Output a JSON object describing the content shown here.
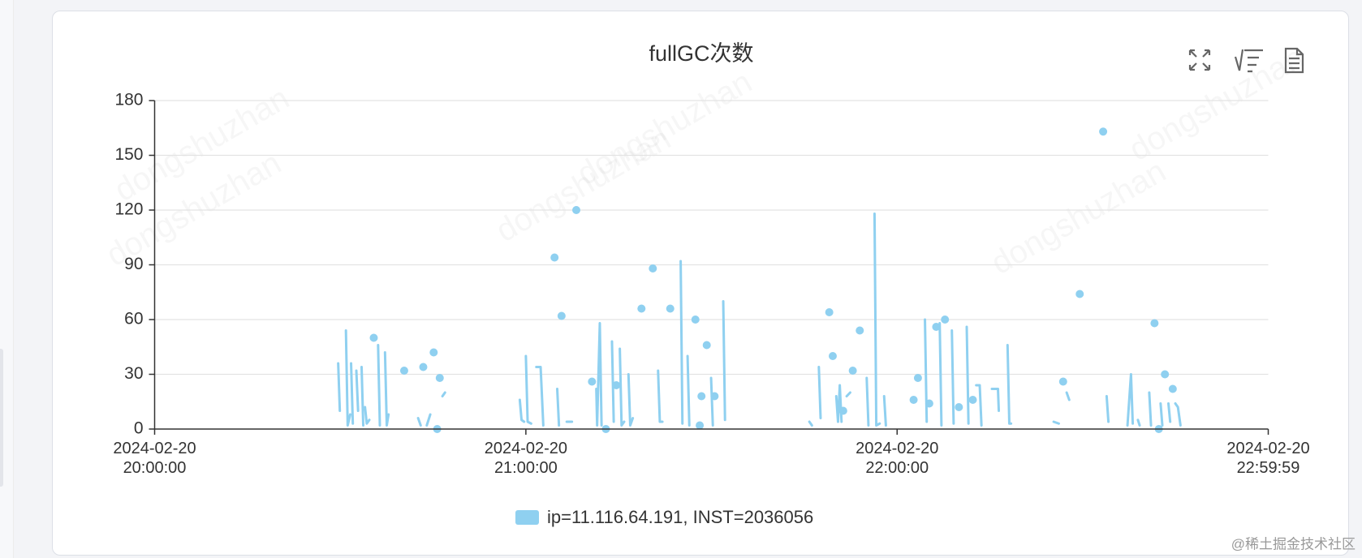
{
  "chart_data": {
    "type": "line",
    "title": "fullGC次数",
    "x": [
      "2024-02-20 20:29:40",
      "2024-02-20 20:29:56",
      null,
      "2024-02-20 20:30:55",
      "2024-02-20 20:31:12",
      "2024-02-20 20:31:37",
      null,
      "2024-02-20 20:31:45",
      "2024-02-20 20:32:02",
      null,
      "2024-02-20 20:32:36",
      "2024-02-20 20:32:53",
      null,
      "2024-02-20 20:33:27",
      "2024-02-20 20:33:43",
      null,
      "2024-02-20 20:34:00",
      "2024-02-20 20:34:17",
      "2024-02-20 20:34:42",
      null,
      "2024-02-20 20:35:25",
      null,
      "2024-02-20 20:36:07",
      "2024-02-20 20:36:24",
      null,
      "2024-02-20 20:37:14",
      "2024-02-20 20:37:31",
      "2024-02-20 20:37:48",
      null,
      "2024-02-20 20:40:20",
      null,
      "2024-02-20 20:42:35",
      "2024-02-20 20:43:00",
      null,
      "2024-02-20 20:43:25",
      null,
      "2024-02-20 20:43:59",
      "2024-02-20 20:44:33",
      null,
      "2024-02-20 20:45:06",
      null,
      "2024-02-20 20:45:40",
      null,
      "2024-02-20 20:46:05",
      null,
      "2024-02-20 20:46:31",
      "2024-02-20 20:46:56",
      null,
      "2024-02-20 20:59:01",
      "2024-02-20 20:59:18",
      "2024-02-20 20:59:43",
      null,
      "2024-02-20 21:00:00",
      "2024-02-20 21:00:17",
      "2024-02-20 21:00:51",
      null,
      "2024-02-20 21:01:41",
      "2024-02-20 21:02:23",
      "2024-02-20 21:02:49",
      null,
      "2024-02-20 21:04:38",
      null,
      "2024-02-20 21:05:04",
      "2024-02-20 21:05:21",
      null,
      "2024-02-20 21:05:46",
      null,
      "2024-02-20 21:06:36",
      "2024-02-20 21:07:27",
      null,
      "2024-02-20 21:08:09",
      null,
      "2024-02-20 21:10:41",
      null,
      "2024-02-20 21:11:23",
      "2024-02-20 21:11:31",
      "2024-02-20 21:11:57",
      "2024-02-20 21:12:14",
      null,
      "2024-02-20 21:12:56",
      null,
      "2024-02-20 21:13:55",
      "2024-02-20 21:14:12",
      null,
      "2024-02-20 21:14:37",
      null,
      "2024-02-20 21:15:11",
      "2024-02-20 21:15:28",
      "2024-02-20 21:15:53",
      null,
      "2024-02-20 21:16:35",
      "2024-02-20 21:16:52",
      "2024-02-20 21:17:17",
      null,
      "2024-02-20 21:18:41",
      null,
      "2024-02-20 21:20:31",
      null,
      "2024-02-20 21:21:22",
      "2024-02-20 21:21:39",
      "2024-02-20 21:22:04",
      null,
      "2024-02-20 21:23:20",
      null,
      "2024-02-20 21:25:01",
      "2024-02-20 21:25:18",
      null,
      "2024-02-20 21:26:08",
      "2024-02-20 21:26:25",
      null,
      "2024-02-20 21:27:24",
      null,
      "2024-02-20 21:28:06",
      null,
      "2024-02-20 21:28:23",
      null,
      "2024-02-20 21:29:14",
      null,
      "2024-02-20 21:29:56",
      "2024-02-20 21:30:13",
      null,
      "2024-02-20 21:30:30",
      null,
      "2024-02-20 21:31:54",
      "2024-02-20 21:32:11",
      null,
      "2024-02-20 21:45:49",
      "2024-02-20 21:46:14",
      null,
      "2024-02-20 21:47:21",
      "2024-02-20 21:47:38",
      null,
      "2024-02-20 21:49:02",
      null,
      "2024-02-20 21:49:36",
      null,
      "2024-02-20 21:50:10",
      "2024-02-20 21:50:27",
      "2024-02-20 21:50:44",
      "2024-02-20 21:51:01",
      null,
      "2024-02-20 21:51:17",
      null,
      "2024-02-20 21:51:51",
      "2024-02-20 21:52:25",
      null,
      "2024-02-20 21:52:50",
      null,
      "2024-02-20 21:53:58",
      null,
      "2024-02-20 21:55:05",
      "2024-02-20 21:55:22",
      null,
      "2024-02-20 21:56:21",
      "2024-02-20 21:56:38",
      "2024-02-20 21:57:11",
      null,
      "2024-02-20 21:57:54",
      "2024-02-20 21:58:11",
      null,
      "2024-02-20 22:02:40",
      null,
      "2024-02-20 22:03:22",
      null,
      "2024-02-20 22:04:30",
      "2024-02-20 22:04:47",
      null,
      "2024-02-20 22:05:12",
      null,
      "2024-02-20 22:06:19",
      null,
      "2024-02-20 22:06:53",
      "2024-02-20 22:07:10",
      null,
      "2024-02-20 22:07:44",
      null,
      "2024-02-20 22:08:51",
      "2024-02-20 22:09:08",
      null,
      "2024-02-20 22:09:59",
      null,
      "2024-02-20 22:11:15",
      "2024-02-20 22:11:32",
      null,
      "2024-02-20 22:12:14",
      null,
      "2024-02-20 22:12:47",
      "2024-02-20 22:13:21",
      "2024-02-20 22:13:38",
      null,
      "2024-02-20 22:15:19",
      "2024-02-20 22:16:18",
      "2024-02-20 22:16:26",
      null,
      "2024-02-20 22:17:51",
      "2024-02-20 22:18:08",
      "2024-02-20 22:18:25",
      null,
      "2024-02-20 22:25:18",
      "2024-02-20 22:26:08",
      null,
      "2024-02-20 22:26:50",
      null,
      "2024-02-20 22:27:24",
      "2024-02-20 22:27:49",
      null,
      "2024-02-20 22:29:31",
      null,
      "2024-02-20 22:33:18",
      null,
      "2024-02-20 22:33:52",
      "2024-02-20 22:34:09",
      null,
      "2024-02-20 22:37:14",
      "2024-02-20 22:37:48",
      "2024-02-20 22:38:05",
      null,
      "2024-02-20 22:38:55",
      "2024-02-20 22:39:12",
      null,
      "2024-02-20 22:40:45",
      "2024-02-20 22:41:02",
      null,
      "2024-02-20 22:41:36",
      null,
      "2024-02-20 22:42:18",
      null,
      "2024-02-20 22:42:35",
      "2024-02-20 22:42:52",
      null,
      "2024-02-20 22:43:17",
      null,
      "2024-02-20 22:43:51",
      "2024-02-20 22:44:08",
      null,
      "2024-02-20 22:44:33",
      null,
      "2024-02-20 22:44:58",
      "2024-02-20 22:45:23",
      "2024-02-20 22:45:48"
    ],
    "series": [
      {
        "name": "ip=11.116.64.191, INST=2036056",
        "color": "#8fd0f0",
        "values": [
          36,
          10,
          null,
          54,
          2,
          8,
          null,
          36,
          3,
          null,
          32,
          10,
          null,
          34,
          2,
          null,
          12,
          3,
          5,
          null,
          50,
          null,
          46,
          2,
          null,
          42,
          2,
          8,
          null,
          32,
          null,
          6,
          2,
          null,
          34,
          null,
          2,
          8,
          null,
          42,
          null,
          0,
          null,
          28,
          null,
          18,
          20,
          null,
          16,
          5,
          4,
          null,
          40,
          4,
          3,
          null,
          34,
          34,
          2,
          null,
          94,
          null,
          22,
          2,
          null,
          62,
          null,
          4,
          4,
          null,
          120,
          null,
          26,
          null,
          22,
          2,
          58,
          2,
          null,
          0,
          null,
          48,
          4,
          null,
          24,
          null,
          44,
          2,
          4,
          null,
          30,
          2,
          6,
          null,
          66,
          null,
          88,
          null,
          32,
          4,
          4,
          null,
          66,
          null,
          92,
          3,
          null,
          40,
          2,
          null,
          60,
          null,
          2,
          null,
          18,
          null,
          46,
          null,
          28,
          2,
          null,
          18,
          null,
          70,
          5,
          null,
          4,
          2,
          null,
          34,
          6,
          null,
          64,
          null,
          40,
          null,
          18,
          4,
          24,
          4,
          null,
          10,
          null,
          18,
          20,
          null,
          32,
          null,
          54,
          null,
          28,
          2,
          null,
          118,
          2,
          3,
          null,
          18,
          2,
          null,
          16,
          null,
          28,
          null,
          60,
          4,
          null,
          14,
          null,
          56,
          null,
          58,
          2,
          null,
          60,
          null,
          54,
          3,
          null,
          12,
          null,
          56,
          3,
          null,
          16,
          null,
          24,
          24,
          2,
          null,
          22,
          22,
          10,
          null,
          46,
          3,
          3,
          null,
          4,
          3,
          null,
          26,
          null,
          20,
          16,
          null,
          74,
          null,
          163,
          null,
          18,
          4,
          null,
          2,
          30,
          3,
          null,
          5,
          2,
          null,
          20,
          2,
          null,
          58,
          null,
          0,
          null,
          14,
          2,
          null,
          30,
          null,
          14,
          4,
          null,
          22,
          null,
          14,
          12,
          2
        ]
      }
    ],
    "xlim": [
      "2024-02-20 20:00:00",
      "2024-02-20 22:59:59"
    ],
    "xticks": [
      "2024-02-20 20:00:00",
      "2024-02-20 21:00:00",
      "2024-02-20 22:00:00",
      "2024-02-20 22:59:59"
    ],
    "ylim": [
      0,
      180
    ],
    "yticks": [
      0,
      30,
      60,
      90,
      120,
      150,
      180
    ],
    "grid": true,
    "legend": "bottom"
  },
  "watermark": "dongshuzhan",
  "corner_mark": "@稀土掘金技术社区"
}
